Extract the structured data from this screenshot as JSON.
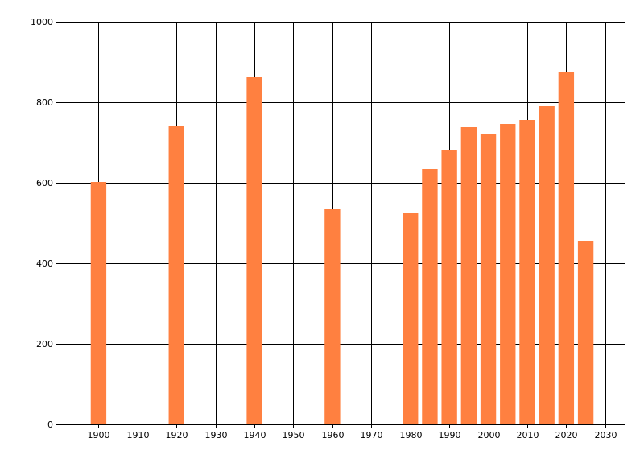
{
  "chart_data": {
    "type": "bar",
    "title": "",
    "xlabel": "",
    "ylabel": "",
    "x": [
      1900,
      1920,
      1940,
      1960,
      1980,
      1985,
      1990,
      1995,
      2000,
      2005,
      2010,
      2015,
      2020,
      2025
    ],
    "values": [
      602,
      742,
      862,
      534,
      524,
      634,
      682,
      738,
      722,
      746,
      756,
      790,
      876,
      456
    ],
    "xlim": [
      1890,
      2035
    ],
    "ylim": [
      0,
      1000
    ],
    "xticks": [
      1900,
      1910,
      1920,
      1930,
      1940,
      1950,
      1960,
      1970,
      1980,
      1990,
      2000,
      2010,
      2020,
      2030
    ],
    "yticks": [
      0,
      200,
      400,
      600,
      800,
      1000
    ],
    "bar_width_years": 4,
    "grid": true,
    "bar_color": "#FF8040",
    "grid_color": "#000000"
  }
}
